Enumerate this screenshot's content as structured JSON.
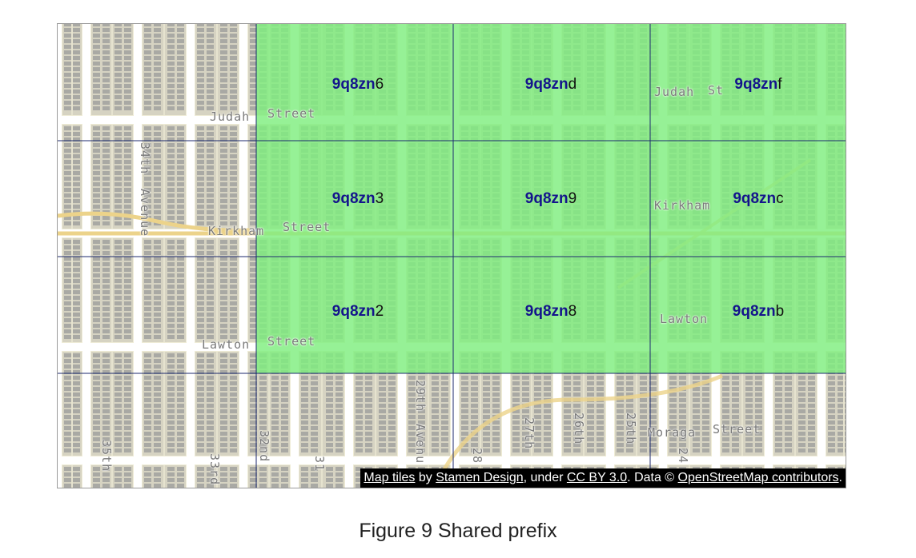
{
  "map": {
    "colors": {
      "land": "#efecd6",
      "block": "#d6d3c2",
      "building": "#a9a9a4",
      "street": "#ffffff",
      "arterial": "#ecd38a",
      "highlight": "#7fee7f",
      "grid_line": "#1c2a6e",
      "label_prefix": "#14148c"
    },
    "street_labels": {
      "judah_left": "Judah",
      "judah_street": "Street",
      "judah_right": "Judah",
      "judah_right_st": "St",
      "kirkham_left": "Kirkham",
      "kirkham_street": "Street",
      "kirkham_right": "Kirkham",
      "lawton_left": "Lawton",
      "lawton_street": "Street",
      "lawton_right": "Lawton",
      "moraga": "Moraga",
      "moraga_street": "Street",
      "ave_34th": "34th",
      "ave_34th_avenue": "Avenue",
      "ave_35th": "35th",
      "ave_33rd": "33rd",
      "ave_32nd": "32nd",
      "ave_31": "31",
      "ave_29th": "29th",
      "ave_29th_avenue": "Avenu",
      "ave_28": "28",
      "ave_27th": "27th",
      "ave_26th": "26th",
      "ave_25th": "25th",
      "ave_24": "24"
    },
    "geohash_cells": [
      {
        "prefix": "9q8zn",
        "suffix": "6"
      },
      {
        "prefix": "9q8zn",
        "suffix": "d"
      },
      {
        "prefix": "9q8zn",
        "suffix": "f"
      },
      {
        "prefix": "9q8zn",
        "suffix": "3"
      },
      {
        "prefix": "9q8zn",
        "suffix": "9"
      },
      {
        "prefix": "9q8zn",
        "suffix": "c"
      },
      {
        "prefix": "9q8zn",
        "suffix": "2"
      },
      {
        "prefix": "9q8zn",
        "suffix": "8"
      },
      {
        "prefix": "9q8zn",
        "suffix": "b"
      }
    ],
    "attribution": {
      "part1": "Map tiles",
      "part2": " by ",
      "part3": "Stamen Design",
      "part4": ", under ",
      "part5": "CC BY 3.0",
      "part6": ". Data © ",
      "part7": "OpenStreetMap contributors",
      "part8": "."
    }
  },
  "caption": "Figure 9 Shared prefix"
}
